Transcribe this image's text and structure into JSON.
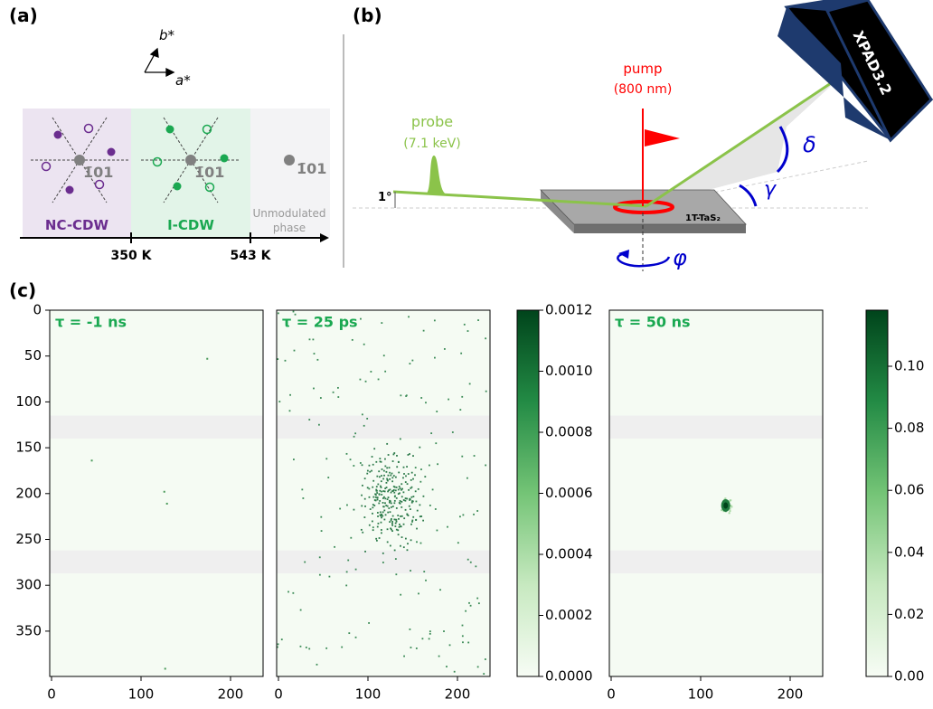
{
  "panel_a": {
    "label": "(a)",
    "vector_b": "b*",
    "vector_a": "a*",
    "reflection": "1̄01",
    "phases": [
      "NC-CDW",
      "I-CDW",
      "Unmodulated phase"
    ],
    "temperatures": [
      "350 K",
      "543 K"
    ]
  },
  "panel_b": {
    "label": "(b)",
    "probe": "probe",
    "probe_energy": "(7.1 keV)",
    "pump": "pump",
    "pump_wavelength": "(800 nm)",
    "detector": "XPAD3.2",
    "angle_delta": "δ",
    "angle_gamma": "γ",
    "incidence": "1°",
    "sample": "1T-TaS₂",
    "angle_phi": "φ"
  },
  "panel_c": {
    "label": "(c)",
    "maps": [
      {
        "title": "τ = -1 ns"
      },
      {
        "title": "τ = 25 ps"
      },
      {
        "title": "τ = 50 ns"
      }
    ],
    "y_ticks": [
      "0",
      "50",
      "100",
      "150",
      "200",
      "250",
      "300",
      "350"
    ],
    "x_ticks": [
      "0",
      "100",
      "200"
    ],
    "colorbars": [
      {
        "ticks": [
          "0.0000",
          "0.0002",
          "0.0004",
          "0.0006",
          "0.0008",
          "0.0010",
          "0.0012"
        ]
      },
      {
        "ticks": [
          "0.00",
          "0.02",
          "0.04",
          "0.06",
          "0.08",
          "0.10"
        ]
      }
    ]
  }
}
